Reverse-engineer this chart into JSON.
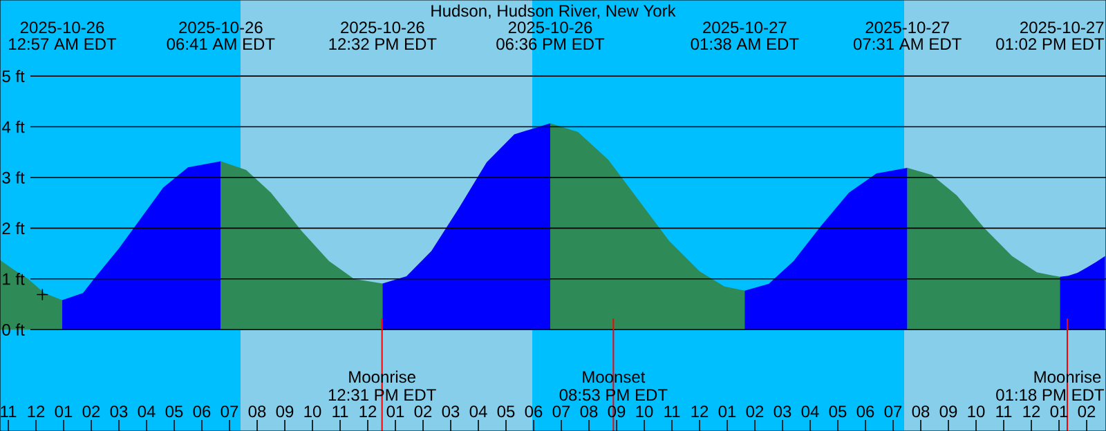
{
  "chart_data": {
    "type": "area",
    "title": "Hudson, Hudson River, New York",
    "xlim": [
      "2025-10-25T22:42",
      "2025-10-27T14:42"
    ],
    "ylim": [
      -2,
      6.5
    ],
    "xticks": [
      {
        "value": "2025-10-25T23:00",
        "label": "11"
      },
      {
        "value": "2025-10-26T00:00",
        "label": "12"
      },
      {
        "value": "2025-10-26T01:00",
        "label": "01"
      },
      {
        "value": "2025-10-26T02:00",
        "label": "02"
      },
      {
        "value": "2025-10-26T03:00",
        "label": "03"
      },
      {
        "value": "2025-10-26T04:00",
        "label": "04"
      },
      {
        "value": "2025-10-26T05:00",
        "label": "05"
      },
      {
        "value": "2025-10-26T06:00",
        "label": "06"
      },
      {
        "value": "2025-10-26T07:00",
        "label": "07"
      },
      {
        "value": "2025-10-26T08:00",
        "label": "08"
      },
      {
        "value": "2025-10-26T09:00",
        "label": "09"
      },
      {
        "value": "2025-10-26T10:00",
        "label": "10"
      },
      {
        "value": "2025-10-26T11:00",
        "label": "11"
      },
      {
        "value": "2025-10-26T12:00",
        "label": "12"
      },
      {
        "value": "2025-10-26T13:00",
        "label": "01"
      },
      {
        "value": "2025-10-26T14:00",
        "label": "02"
      },
      {
        "value": "2025-10-26T15:00",
        "label": "03"
      },
      {
        "value": "2025-10-26T16:00",
        "label": "04"
      },
      {
        "value": "2025-10-26T17:00",
        "label": "05"
      },
      {
        "value": "2025-10-26T18:00",
        "label": "06"
      },
      {
        "value": "2025-10-26T19:00",
        "label": "07"
      },
      {
        "value": "2025-10-26T20:00",
        "label": "08"
      },
      {
        "value": "2025-10-26T21:00",
        "label": "09"
      },
      {
        "value": "2025-10-26T22:00",
        "label": "10"
      },
      {
        "value": "2025-10-26T23:00",
        "label": "11"
      },
      {
        "value": "2025-10-27T00:00",
        "label": "12"
      },
      {
        "value": "2025-10-27T01:00",
        "label": "01"
      },
      {
        "value": "2025-10-27T02:00",
        "label": "02"
      },
      {
        "value": "2025-10-27T03:00",
        "label": "03"
      },
      {
        "value": "2025-10-27T04:00",
        "label": "04"
      },
      {
        "value": "2025-10-27T05:00",
        "label": "05"
      },
      {
        "value": "2025-10-27T06:00",
        "label": "06"
      },
      {
        "value": "2025-10-27T07:00",
        "label": "07"
      },
      {
        "value": "2025-10-27T08:00",
        "label": "08"
      },
      {
        "value": "2025-10-27T09:00",
        "label": "09"
      },
      {
        "value": "2025-10-27T10:00",
        "label": "10"
      },
      {
        "value": "2025-10-27T11:00",
        "label": "11"
      },
      {
        "value": "2025-10-27T12:00",
        "label": "12"
      },
      {
        "value": "2025-10-27T13:00",
        "label": "01"
      },
      {
        "value": "2025-10-27T14:00",
        "label": "02"
      }
    ],
    "yticks": [
      {
        "value": 0,
        "label": "0 ft"
      },
      {
        "value": 1,
        "label": "1 ft"
      },
      {
        "value": 2,
        "label": "2 ft"
      },
      {
        "value": 3,
        "label": "3 ft"
      },
      {
        "value": 4,
        "label": "4 ft"
      },
      {
        "value": 5,
        "label": "5 ft"
      }
    ],
    "grid": "y",
    "bands": [
      {
        "axis": "x",
        "from": "2025-10-25T22:42",
        "to": "2025-10-26T07:24",
        "color": "#00bfff"
      },
      {
        "axis": "x",
        "from": "2025-10-26T07:24",
        "to": "2025-10-26T17:57",
        "color": "#87ceeb"
      },
      {
        "axis": "x",
        "from": "2025-10-26T17:57",
        "to": "2025-10-27T07:24",
        "color": "#00bfff"
      },
      {
        "axis": "x",
        "from": "2025-10-27T07:24",
        "to": "2025-10-27T14:42",
        "color": "#87ceeb"
      }
    ],
    "series": [
      {
        "color": "#2e8b57",
        "x": [
          "2025-10-25T22:42",
          "2025-10-25T23:12",
          "2025-10-25T23:43",
          "2025-10-26T00:18",
          "2025-10-26T00:57"
        ],
        "values": [
          1.37,
          1.18,
          1.0,
          0.72,
          0.58
        ]
      },
      {
        "color": "#0000ff",
        "x": [
          "2025-10-26T00:57",
          "2025-10-26T01:42",
          "2025-10-26T02:06",
          "2025-10-26T03:00",
          "2025-10-26T03:48",
          "2025-10-26T04:36",
          "2025-10-26T05:30",
          "2025-10-26T06:41"
        ],
        "values": [
          0.58,
          0.72,
          1.0,
          1.6,
          2.2,
          2.8,
          3.2,
          3.32
        ]
      },
      {
        "color": "#2e8b57",
        "x": [
          "2025-10-26T06:41",
          "2025-10-26T07:36",
          "2025-10-26T08:30",
          "2025-10-26T09:36",
          "2025-10-26T10:36",
          "2025-10-26T11:30",
          "2025-10-26T12:32"
        ],
        "values": [
          3.32,
          3.15,
          2.7,
          1.95,
          1.35,
          1.0,
          0.91
        ]
      },
      {
        "color": "#0000ff",
        "x": [
          "2025-10-26T12:32",
          "2025-10-26T13:24",
          "2025-10-26T14:18",
          "2025-10-26T15:18",
          "2025-10-26T16:18",
          "2025-10-26T17:18",
          "2025-10-26T18:36"
        ],
        "values": [
          0.91,
          1.05,
          1.55,
          2.4,
          3.3,
          3.85,
          4.07
        ]
      },
      {
        "color": "#2e8b57",
        "x": [
          "2025-10-26T18:36",
          "2025-10-26T19:36",
          "2025-10-26T20:42",
          "2025-10-26T21:48",
          "2025-10-26T22:54",
          "2025-10-27T00:00",
          "2025-10-27T00:54",
          "2025-10-27T01:38"
        ],
        "values": [
          4.07,
          3.9,
          3.35,
          2.55,
          1.75,
          1.15,
          0.85,
          0.77
        ]
      },
      {
        "color": "#0000ff",
        "x": [
          "2025-10-27T01:38",
          "2025-10-27T02:30",
          "2025-10-27T03:24",
          "2025-10-27T04:24",
          "2025-10-27T05:24",
          "2025-10-27T06:24",
          "2025-10-27T07:31"
        ],
        "values": [
          0.77,
          0.9,
          1.35,
          2.05,
          2.7,
          3.08,
          3.19
        ]
      },
      {
        "color": "#2e8b57",
        "x": [
          "2025-10-27T07:31",
          "2025-10-27T08:24",
          "2025-10-27T09:18",
          "2025-10-27T10:18",
          "2025-10-27T11:18",
          "2025-10-27T12:12",
          "2025-10-27T13:02"
        ],
        "values": [
          3.19,
          3.05,
          2.65,
          2.0,
          1.45,
          1.13,
          1.04
        ]
      },
      {
        "color": "#0000ff",
        "x": [
          "2025-10-27T13:02",
          "2025-10-27T13:20",
          "2025-10-27T13:40",
          "2025-10-27T14:00",
          "2025-10-27T14:20",
          "2025-10-27T14:40"
        ],
        "values": [
          1.04,
          1.06,
          1.12,
          1.22,
          1.33,
          1.45
        ]
      },
      {
        "type": "scatter",
        "color": "#000000",
        "marker": "cross",
        "x": [
          "2025-10-26T00:14"
        ],
        "values": [
          0.69
        ]
      }
    ],
    "ref_lines": [
      {
        "axis": "x",
        "value": "2025-10-26T12:31",
        "label": "Moonrise",
        "color": "#ff0000"
      },
      {
        "axis": "x",
        "value": "2025-10-26T20:53",
        "label": "Moonset",
        "color": "#ff0000"
      },
      {
        "axis": "x",
        "value": "2025-10-27T13:18",
        "label": "Moonrise",
        "color": "#ff0000"
      }
    ],
    "annotations": [
      "2025-10-26",
      "12:57 AM EDT",
      "2025-10-26",
      "06:41 AM EDT",
      "2025-10-26",
      "12:32 PM EDT",
      "2025-10-26",
      "06:36 PM EDT",
      "2025-10-27",
      "01:38 AM EDT",
      "2025-10-27",
      "07:31 AM EDT",
      "2025-10-27",
      "01:02 PM EDT",
      {
        "text": "12:31 PM EDT",
        "x": "2025-10-26T12:31"
      },
      {
        "text": "08:53 PM EDT",
        "x": "2025-10-26T20:53"
      },
      {
        "text": "01:18 PM EDT",
        "x": "2025-10-27T13:18"
      }
    ]
  }
}
